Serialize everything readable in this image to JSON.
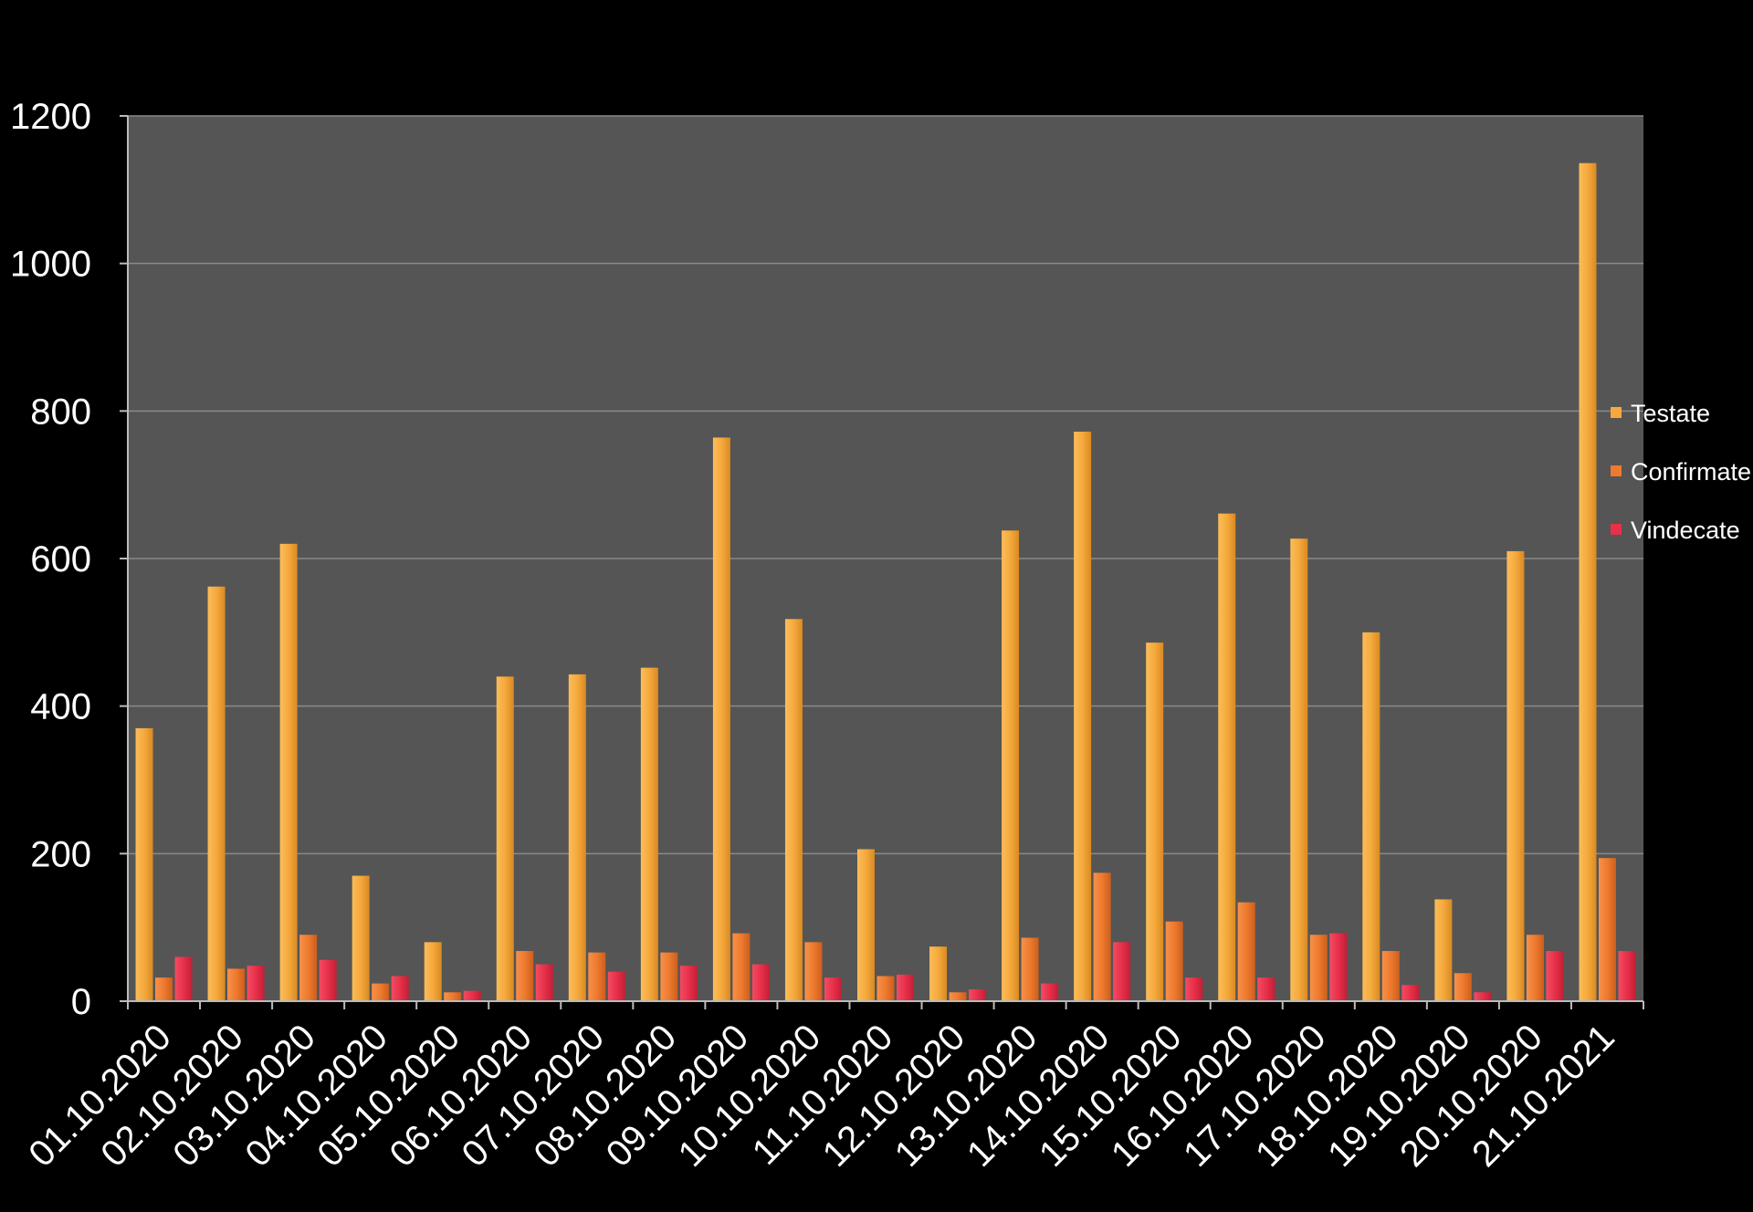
{
  "chart_data": {
    "type": "bar",
    "title": "",
    "xlabel": "",
    "ylabel": "",
    "ylim": [
      0,
      1200
    ],
    "yticks": [
      0,
      200,
      400,
      600,
      800,
      1000,
      1200
    ],
    "grid": true,
    "legend_position": "right",
    "categories": [
      "01.10.2020",
      "02.10.2020",
      "03.10.2020",
      "04.10.2020",
      "05.10.2020",
      "06.10.2020",
      "07.10.2020",
      "08.10.2020",
      "09.10.2020",
      "10.10.2020",
      "11.10.2020",
      "12.10.2020",
      "13.10.2020",
      "14.10.2020",
      "15.10.2020",
      "16.10.2020",
      "17.10.2020",
      "18.10.2020",
      "19.10.2020",
      "20.10.2020",
      "21.10.2021"
    ],
    "series": [
      {
        "name": "Testate",
        "color": "#f5a93c",
        "values": [
          370,
          562,
          620,
          170,
          80,
          440,
          443,
          452,
          764,
          518,
          206,
          74,
          638,
          772,
          486,
          661,
          627,
          500,
          138,
          610,
          1136
        ]
      },
      {
        "name": "Confirmate",
        "color": "#ee7a2e",
        "values": [
          32,
          44,
          90,
          24,
          12,
          68,
          66,
          66,
          92,
          80,
          34,
          12,
          86,
          174,
          108,
          134,
          90,
          68,
          38,
          90,
          194
        ]
      },
      {
        "name": "Vindecate",
        "color": "#e8304a",
        "values": [
          60,
          48,
          56,
          34,
          14,
          50,
          40,
          48,
          50,
          32,
          36,
          16,
          24,
          80,
          32,
          32,
          92,
          22,
          12,
          68,
          68
        ]
      }
    ]
  }
}
